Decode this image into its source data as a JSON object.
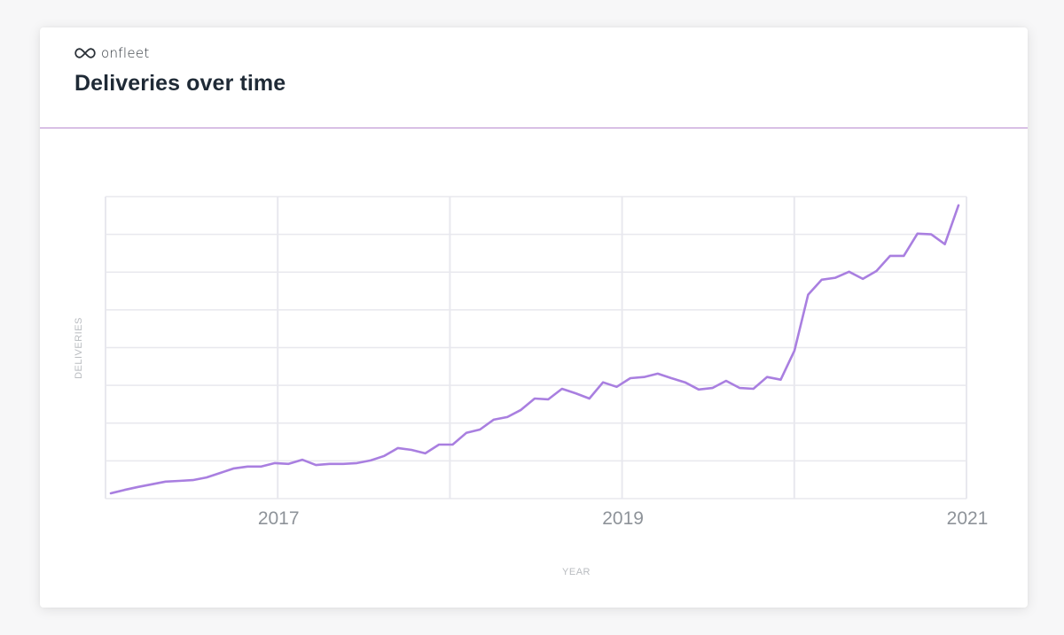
{
  "brand": {
    "name": "onfleet",
    "logo_icon": "infinity-icon"
  },
  "header": {
    "title": "Deliveries over time"
  },
  "colors": {
    "line": "#a97fe0",
    "divider": "#b98bd0",
    "grid": "#e8e8ee",
    "axis_text": "#8e9399",
    "axis_title": "#b9bcc0",
    "title_text": "#1f2a36"
  },
  "chart_data": {
    "type": "line",
    "title": "Deliveries over time",
    "xlabel": "YEAR",
    "ylabel": "DELIVERIES",
    "x_tick_labels": [
      "2017",
      "2019",
      "2021"
    ],
    "x_range": [
      2016,
      2021
    ],
    "y_tick_labels": [],
    "y_range_units": [
      0,
      8
    ],
    "y_note": "Y axis has no numeric labels; values are in gridline units (8 equal gridline intervals).",
    "grid": true,
    "legend": null,
    "series": [
      {
        "name": "Deliveries",
        "x": [
          "2016-01",
          "2016-02",
          "2016-03",
          "2016-04",
          "2016-05",
          "2016-06",
          "2016-07",
          "2016-08",
          "2016-09",
          "2016-10",
          "2016-11",
          "2016-12",
          "2017-01",
          "2017-02",
          "2017-03",
          "2017-04",
          "2017-05",
          "2017-06",
          "2017-07",
          "2017-08",
          "2017-09",
          "2017-10",
          "2017-11",
          "2017-12",
          "2018-01",
          "2018-02",
          "2018-03",
          "2018-04",
          "2018-05",
          "2018-06",
          "2018-07",
          "2018-08",
          "2018-09",
          "2018-10",
          "2018-11",
          "2018-12",
          "2019-01",
          "2019-02",
          "2019-03",
          "2019-04",
          "2019-05",
          "2019-06",
          "2019-07",
          "2019-08",
          "2019-09",
          "2019-10",
          "2019-11",
          "2019-12",
          "2020-01",
          "2020-02",
          "2020-03",
          "2020-04",
          "2020-05",
          "2020-06",
          "2020-07",
          "2020-08",
          "2020-09",
          "2020-10",
          "2020-11",
          "2020-12",
          "2021-01",
          "2021-02",
          "2021-03"
        ],
        "values": [
          0.14,
          0.23,
          0.31,
          0.38,
          0.45,
          0.47,
          0.49,
          0.56,
          0.68,
          0.8,
          0.85,
          0.85,
          0.94,
          0.92,
          1.03,
          0.89,
          0.92,
          0.92,
          0.94,
          1.01,
          1.13,
          1.34,
          1.29,
          1.2,
          1.43,
          1.43,
          1.74,
          1.83,
          2.09,
          2.16,
          2.35,
          2.65,
          2.63,
          2.91,
          2.79,
          2.65,
          3.08,
          2.96,
          3.19,
          3.22,
          3.31,
          3.19,
          3.08,
          2.89,
          2.93,
          3.12,
          2.93,
          2.91,
          3.22,
          3.15,
          3.92,
          5.4,
          5.8,
          5.85,
          6.01,
          5.82,
          6.03,
          6.43,
          6.43,
          7.02,
          7.0,
          6.74,
          7.77
        ]
      }
    ]
  }
}
